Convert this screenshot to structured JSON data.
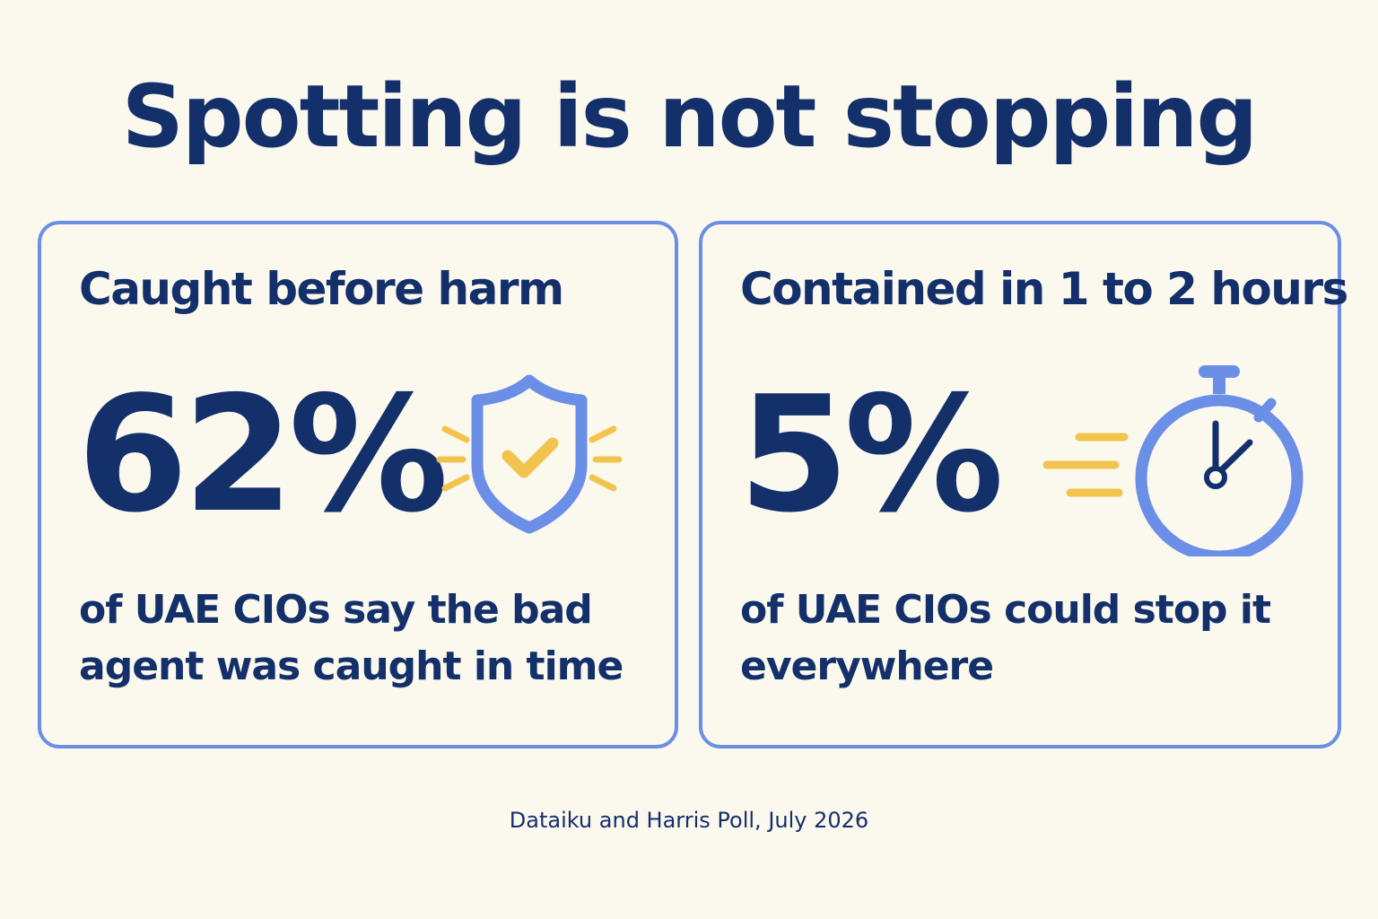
{
  "title": "Spotting is not stopping",
  "cards": [
    {
      "heading": "Caught before harm",
      "stat": "62%",
      "description": "of UAE CIOs say the bad agent was caught in time",
      "icon": "shield-check-icon"
    },
    {
      "heading": "Contained in 1 to 2 hours",
      "stat": "5%",
      "description": "of UAE CIOs could stop it everywhere",
      "icon": "stopwatch-icon"
    }
  ],
  "source": "Dataiku and Harris Poll, July 2026",
  "colors": {
    "background": "#fbf8ee",
    "navy": "#14306b",
    "blue": "#6b8fe6",
    "yellow": "#f2c44e"
  }
}
